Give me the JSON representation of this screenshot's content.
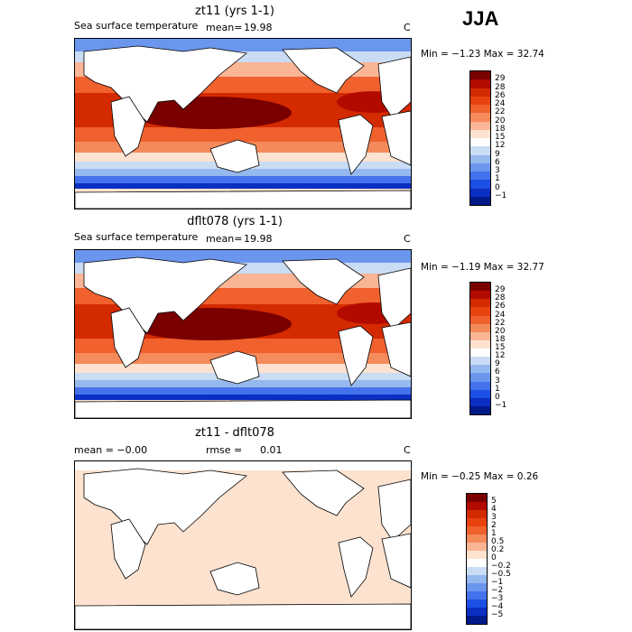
{
  "season": "JJA",
  "panels": [
    {
      "title": "zt11 (yrs 1-1)",
      "left_label": "Sea surface temperature",
      "stat_label": "mean=",
      "stat_value": "19.98",
      "units": "C",
      "minmax": "Min = −1.23 Max = 32.74",
      "scale": "abs"
    },
    {
      "title": "dflt078 (yrs 1-1)",
      "left_label": "Sea surface temperature",
      "stat_label": "mean=",
      "stat_value": "19.98",
      "units": "C",
      "minmax": "Min = −1.19 Max = 32.77",
      "scale": "abs"
    },
    {
      "title": "zt11 - dflt078",
      "left_label": "mean = −0.00",
      "stat_label": "rmse =",
      "stat_value": "0.01",
      "units": "C",
      "minmax": "Min = −0.25 Max = 0.26",
      "scale": "diff"
    }
  ],
  "colorbars": {
    "abs": {
      "labels": [
        "29",
        "28",
        "26",
        "24",
        "22",
        "20",
        "18",
        "15",
        "12",
        "9",
        "6",
        "3",
        "1",
        "0",
        "−1"
      ],
      "colors": [
        "#7a0000",
        "#b30a00",
        "#d42a00",
        "#e8430f",
        "#f0612e",
        "#f58a5a",
        "#f9b595",
        "#fce2cf",
        "#ffffff",
        "#c9dcf4",
        "#95b8ee",
        "#6b96ee",
        "#4472ec",
        "#1c4fe4",
        "#0a2fc2",
        "#001a8a"
      ]
    },
    "diff": {
      "labels": [
        "5",
        "4",
        "3",
        "2",
        "1",
        "0.5",
        "0.2",
        "0",
        "−0.2",
        "−0.5",
        "−1",
        "−2",
        "−3",
        "−4",
        "−5"
      ],
      "colors": [
        "#7a0000",
        "#b30a00",
        "#d42a00",
        "#e8430f",
        "#f0612e",
        "#f58a5a",
        "#f9b595",
        "#fce2cf",
        "#ffffff",
        "#c9dcf4",
        "#95b8ee",
        "#6b96ee",
        "#4472ec",
        "#1c4fe4",
        "#0a2fc2",
        "#001a8a"
      ]
    }
  }
}
